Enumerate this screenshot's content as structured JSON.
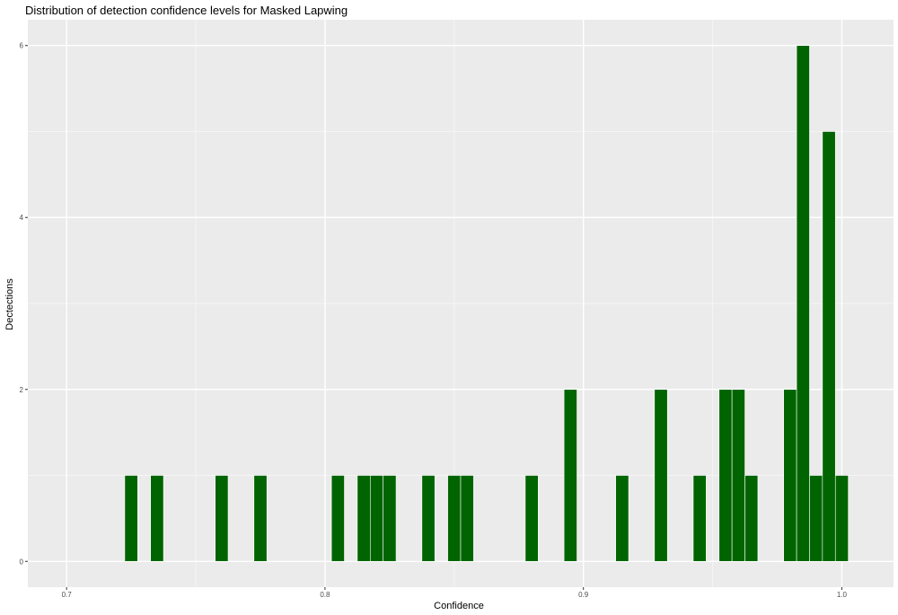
{
  "chart_data": {
    "type": "bar",
    "title": "Distribution of detection confidence levels for Masked Lapwing",
    "xlabel": "Confidence",
    "ylabel": "Dectections",
    "xlim": [
      0.685,
      1.02
    ],
    "ylim": [
      -0.3,
      6.3
    ],
    "x_ticks": [
      0.7,
      0.8,
      0.9,
      1.0
    ],
    "x_tick_labels": [
      "0.7",
      "0.8",
      "0.9",
      "1.0"
    ],
    "y_ticks": [
      0,
      2,
      4,
      6
    ],
    "y_tick_labels": [
      "0",
      "2",
      "4",
      "6"
    ],
    "bin_width": 0.005,
    "x": [
      0.725,
      0.735,
      0.76,
      0.775,
      0.805,
      0.815,
      0.82,
      0.825,
      0.84,
      0.85,
      0.855,
      0.88,
      0.895,
      0.915,
      0.93,
      0.945,
      0.955,
      0.96,
      0.965,
      0.98,
      0.985,
      0.99,
      0.995,
      1.0
    ],
    "values": [
      1,
      1,
      1,
      1,
      1,
      1,
      1,
      1,
      1,
      1,
      1,
      1,
      2,
      1,
      2,
      1,
      2,
      2,
      1,
      2,
      6,
      1,
      5,
      1
    ],
    "grid": true,
    "colors": {
      "bar": "#006400",
      "panel": "#ebebeb",
      "grid_major": "#ffffff",
      "grid_minor": "#f5f5f5"
    }
  }
}
